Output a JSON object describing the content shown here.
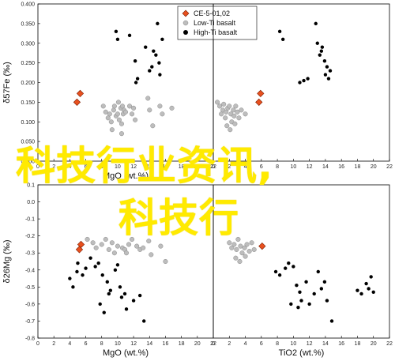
{
  "chart_data": [
    {
      "type": "scatter",
      "panel": "top-left",
      "xlabel": "MgO (wt.%)",
      "ylabel": "δ57Fe (‰)",
      "xlim": [
        0,
        22
      ],
      "ylim": [
        0.0,
        0.4
      ],
      "xticks": [
        0,
        2,
        4,
        6,
        8,
        10,
        12,
        14,
        16,
        18,
        20,
        22
      ],
      "yticks": [
        0.0,
        0.05,
        0.1,
        0.15,
        0.2,
        0.25,
        0.3,
        0.35,
        0.4
      ],
      "series": [
        {
          "name": "CE-5-01,02",
          "marker": "diamond",
          "color": "#e8501e",
          "points": [
            [
              4.9,
              0.15
            ],
            [
              5.3,
              0.172
            ]
          ]
        },
        {
          "name": "Low-Ti basalt",
          "marker": "circle-gray",
          "color": "#bdbdbd",
          "points": [
            [
              8.2,
              0.14
            ],
            [
              8.5,
              0.125
            ],
            [
              8.8,
              0.11
            ],
            [
              9.0,
              0.12
            ],
            [
              9.2,
              0.1
            ],
            [
              9.5,
              0.13
            ],
            [
              9.6,
              0.14
            ],
            [
              9.8,
              0.115
            ],
            [
              10.0,
              0.12
            ],
            [
              10.1,
              0.15
            ],
            [
              10.2,
              0.105
            ],
            [
              10.4,
              0.135
            ],
            [
              10.6,
              0.14
            ],
            [
              10.7,
              0.12
            ],
            [
              10.8,
              0.13
            ],
            [
              11.0,
              0.125
            ],
            [
              11.5,
              0.14
            ],
            [
              11.8,
              0.12
            ],
            [
              12.0,
              0.135
            ],
            [
              12.2,
              0.105
            ],
            [
              13.8,
              0.16
            ],
            [
              14.0,
              0.13
            ],
            [
              14.4,
              0.09
            ],
            [
              15.3,
              0.14
            ],
            [
              15.6,
              0.12
            ],
            [
              16.8,
              0.135
            ],
            [
              10.5,
              0.095
            ],
            [
              9.3,
              0.08
            ],
            [
              10.5,
              0.07
            ]
          ]
        },
        {
          "name": "High-Ti basalt",
          "marker": "circle-black",
          "color": "#000000",
          "points": [
            [
              9.8,
              0.33
            ],
            [
              10.0,
              0.31
            ],
            [
              11.5,
              0.32
            ],
            [
              12.2,
              0.255
            ],
            [
              12.3,
              0.2
            ],
            [
              12.5,
              0.21
            ],
            [
              13.5,
              0.29
            ],
            [
              14.0,
              0.23
            ],
            [
              14.3,
              0.24
            ],
            [
              14.5,
              0.28
            ],
            [
              14.8,
              0.27
            ],
            [
              15.0,
              0.35
            ],
            [
              15.2,
              0.25
            ],
            [
              15.3,
              0.22
            ],
            [
              15.6,
              0.31
            ]
          ]
        }
      ],
      "legend": {
        "position": "top-right"
      }
    },
    {
      "type": "scatter",
      "panel": "top-right",
      "xlabel": "",
      "ylabel": "",
      "xlim": [
        0,
        22
      ],
      "ylim": [
        0.0,
        0.4
      ],
      "xticks": [
        0,
        2,
        4,
        6,
        8,
        10,
        12,
        14,
        16,
        18,
        20,
        22
      ],
      "series": [
        {
          "name": "CE-5-01,02",
          "marker": "diamond",
          "color": "#e8501e",
          "points": [
            [
              5.7,
              0.15
            ],
            [
              5.9,
              0.172
            ]
          ]
        },
        {
          "name": "Low-Ti basalt",
          "marker": "circle-gray",
          "color": "#bdbdbd",
          "points": [
            [
              0.5,
              0.15
            ],
            [
              0.8,
              0.14
            ],
            [
              1.0,
              0.12
            ],
            [
              1.2,
              0.13
            ],
            [
              1.3,
              0.145
            ],
            [
              1.5,
              0.11
            ],
            [
              1.6,
              0.125
            ],
            [
              1.8,
              0.135
            ],
            [
              2.0,
              0.14
            ],
            [
              2.2,
              0.12
            ],
            [
              2.3,
              0.1
            ],
            [
              2.5,
              0.13
            ],
            [
              2.6,
              0.115
            ],
            [
              2.8,
              0.14
            ],
            [
              3.0,
              0.125
            ],
            [
              3.2,
              0.11
            ],
            [
              1.7,
              0.09
            ],
            [
              2.1,
              0.08
            ],
            [
              2.7,
              0.095
            ],
            [
              3.5,
              0.13
            ],
            [
              4.0,
              0.12
            ]
          ]
        },
        {
          "name": "High-Ti basalt",
          "marker": "circle-black",
          "color": "#000000",
          "points": [
            [
              8.3,
              0.33
            ],
            [
              8.7,
              0.31
            ],
            [
              10.8,
              0.2
            ],
            [
              11.3,
              0.205
            ],
            [
              11.8,
              0.21
            ],
            [
              12.8,
              0.35
            ],
            [
              13.0,
              0.3
            ],
            [
              13.3,
              0.27
            ],
            [
              13.6,
              0.29
            ],
            [
              13.9,
              0.255
            ],
            [
              14.0,
              0.22
            ],
            [
              14.2,
              0.24
            ],
            [
              14.4,
              0.21
            ],
            [
              14.6,
              0.23
            ],
            [
              13.5,
              0.28
            ]
          ]
        }
      ]
    },
    {
      "type": "scatter",
      "panel": "bottom-left",
      "xlabel": "MgO (wt.%)",
      "ylabel": "δ26Mg (‰)",
      "xlim": [
        0,
        22
      ],
      "ylim": [
        -0.8,
        0.1
      ],
      "xticks": [
        0,
        2,
        4,
        6,
        8,
        10,
        12,
        14,
        16,
        18,
        20,
        22
      ],
      "yticks": [
        0.1,
        0.0,
        -0.1,
        -0.2,
        -0.3,
        -0.4,
        -0.5,
        -0.6,
        -0.7,
        -0.8
      ],
      "series": [
        {
          "name": "CE-5-01,02",
          "marker": "diamond",
          "color": "#e8501e",
          "points": [
            [
              5.4,
              -0.25
            ],
            [
              5.2,
              -0.28
            ]
          ]
        },
        {
          "name": "Low-Ti basalt",
          "marker": "circle-gray",
          "color": "#bdbdbd",
          "points": [
            [
              6.2,
              -0.22
            ],
            [
              6.9,
              -0.24
            ],
            [
              7.3,
              -0.27
            ],
            [
              8.0,
              -0.25
            ],
            [
              8.5,
              -0.22
            ],
            [
              8.9,
              -0.28
            ],
            [
              9.3,
              -0.24
            ],
            [
              9.6,
              -0.3
            ],
            [
              10.0,
              -0.26
            ],
            [
              10.6,
              -0.27
            ],
            [
              10.9,
              -0.28
            ],
            [
              11.1,
              -0.3
            ],
            [
              11.4,
              -0.25
            ],
            [
              11.8,
              -0.22
            ],
            [
              12.4,
              -0.26
            ],
            [
              12.8,
              -0.28
            ],
            [
              13.2,
              -0.27
            ],
            [
              13.9,
              -0.23
            ],
            [
              14.2,
              -0.31
            ],
            [
              16.0,
              -0.35
            ],
            [
              15.4,
              -0.26
            ]
          ]
        },
        {
          "name": "High-Ti basalt",
          "marker": "circle-black",
          "color": "#000000",
          "points": [
            [
              4.0,
              -0.45
            ],
            [
              4.4,
              -0.5
            ],
            [
              4.9,
              -0.41
            ],
            [
              5.0,
              -0.36
            ],
            [
              5.6,
              -0.43
            ],
            [
              6.0,
              -0.39
            ],
            [
              6.6,
              -0.33
            ],
            [
              7.2,
              -0.38
            ],
            [
              7.6,
              -0.36
            ],
            [
              8.1,
              -0.43
            ],
            [
              8.7,
              -0.47
            ],
            [
              8.9,
              -0.54
            ],
            [
              9.1,
              -0.52
            ],
            [
              9.7,
              -0.4
            ],
            [
              10.0,
              -0.37
            ],
            [
              10.3,
              -0.5
            ],
            [
              10.5,
              -0.56
            ],
            [
              10.9,
              -0.54
            ],
            [
              11.1,
              -0.63
            ],
            [
              12.0,
              -0.58
            ],
            [
              12.8,
              -0.55
            ],
            [
              13.3,
              -0.7
            ],
            [
              7.8,
              -0.6
            ],
            [
              8.3,
              -0.65
            ]
          ]
        }
      ]
    },
    {
      "type": "scatter",
      "panel": "bottom-right",
      "xlabel": "TiO2 (wt.%)",
      "ylabel": "",
      "xlim": [
        0,
        22
      ],
      "ylim": [
        -0.8,
        0.1
      ],
      "xticks": [
        0,
        2,
        4,
        6,
        8,
        10,
        12,
        14,
        16,
        18,
        20,
        22
      ],
      "series": [
        {
          "name": "CE-5-01,02",
          "marker": "diamond",
          "color": "#e8501e",
          "points": [
            [
              6.1,
              -0.26
            ]
          ]
        },
        {
          "name": "Low-Ti basalt",
          "marker": "circle-gray",
          "color": "#bdbdbd",
          "points": [
            [
              2.0,
              -0.24
            ],
            [
              2.3,
              -0.27
            ],
            [
              2.6,
              -0.25
            ],
            [
              2.9,
              -0.28
            ],
            [
              3.1,
              -0.22
            ],
            [
              3.4,
              -0.26
            ],
            [
              3.6,
              -0.3
            ],
            [
              3.9,
              -0.27
            ],
            [
              4.2,
              -0.25
            ],
            [
              4.5,
              -0.29
            ],
            [
              2.8,
              -0.33
            ],
            [
              3.3,
              -0.35
            ],
            [
              4.0,
              -0.32
            ],
            [
              4.8,
              -0.24
            ],
            [
              5.1,
              -0.28
            ]
          ]
        },
        {
          "name": "High-Ti basalt",
          "marker": "circle-black",
          "color": "#000000",
          "points": [
            [
              7.8,
              -0.41
            ],
            [
              8.3,
              -0.43
            ],
            [
              9.0,
              -0.39
            ],
            [
              9.4,
              -0.36
            ],
            [
              10.0,
              -0.38
            ],
            [
              10.4,
              -0.49
            ],
            [
              10.8,
              -0.53
            ],
            [
              11.0,
              -0.58
            ],
            [
              11.6,
              -0.47
            ],
            [
              12.0,
              -0.6
            ],
            [
              12.6,
              -0.54
            ],
            [
              13.1,
              -0.41
            ],
            [
              13.5,
              -0.51
            ],
            [
              13.9,
              -0.47
            ],
            [
              14.2,
              -0.58
            ],
            [
              14.8,
              -0.7
            ],
            [
              18.0,
              -0.52
            ],
            [
              18.5,
              -0.54
            ],
            [
              19.1,
              -0.48
            ],
            [
              19.4,
              -0.51
            ],
            [
              19.7,
              -0.44
            ],
            [
              20.0,
              -0.53
            ],
            [
              9.7,
              -0.6
            ],
            [
              10.6,
              -0.62
            ]
          ]
        }
      ]
    }
  ],
  "overlay_text": {
    "line1": "科技行业资讯,",
    "line2": "科技行"
  }
}
